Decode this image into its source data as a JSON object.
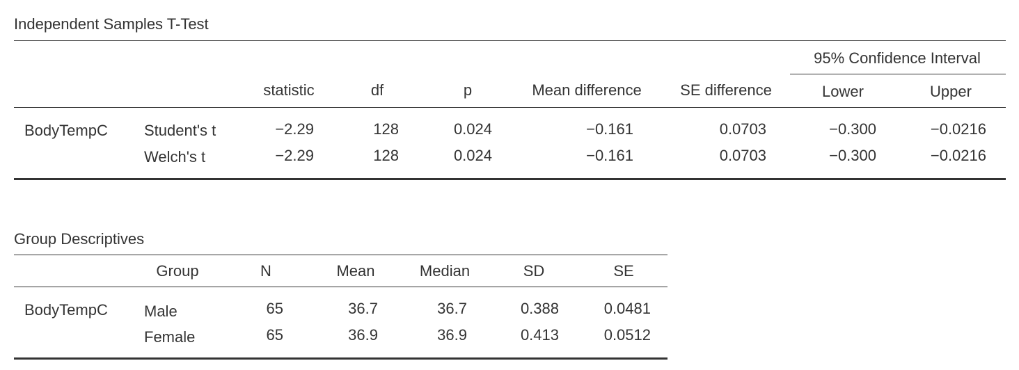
{
  "ttest": {
    "title": "Independent Samples T-Test",
    "ci_header": "95% Confidence Interval",
    "headers": {
      "statistic": "statistic",
      "df": "df",
      "p": "p",
      "mean_diff": "Mean difference",
      "se_diff": "SE difference",
      "lower": "Lower",
      "upper": "Upper"
    },
    "variable": "BodyTempC",
    "rows": [
      {
        "test": "Student's t",
        "statistic": "−2.29",
        "df": "128",
        "p": "0.024",
        "mean_diff": "−0.161",
        "se_diff": "0.0703",
        "lower": "−0.300",
        "upper": "−0.0216"
      },
      {
        "test": "Welch's t",
        "statistic": "−2.29",
        "df": "128",
        "p": "0.024",
        "mean_diff": "−0.161",
        "se_diff": "0.0703",
        "lower": "−0.300",
        "upper": "−0.0216"
      }
    ]
  },
  "descriptives": {
    "title": "Group Descriptives",
    "headers": {
      "group": "Group",
      "n": "N",
      "mean": "Mean",
      "median": "Median",
      "sd": "SD",
      "se": "SE"
    },
    "variable": "BodyTempC",
    "rows": [
      {
        "group": "Male",
        "n": "65",
        "mean": "36.7",
        "median": "36.7",
        "sd": "0.388",
        "se": "0.0481"
      },
      {
        "group": "Female",
        "n": "65",
        "mean": "36.9",
        "median": "36.9",
        "sd": "0.413",
        "se": "0.0512"
      }
    ]
  }
}
